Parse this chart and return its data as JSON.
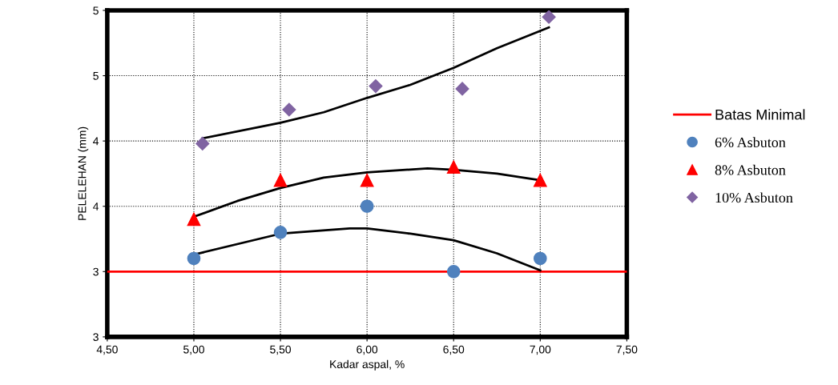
{
  "chart_data": {
    "type": "scatter",
    "xlabel": "Kadar aspal, %",
    "ylabel": "PELELEHAN (mm)",
    "xlim": [
      4.5,
      7.5
    ],
    "xticks": [
      {
        "value": 4.5,
        "label": "4,50"
      },
      {
        "value": 5.0,
        "label": "5,00"
      },
      {
        "value": 5.5,
        "label": "5,50"
      },
      {
        "value": 6.0,
        "label": "6,00"
      },
      {
        "value": 6.5,
        "label": "6,50"
      },
      {
        "value": 7.0,
        "label": "7,00"
      },
      {
        "value": 7.5,
        "label": "7,50"
      }
    ],
    "ylim": [
      2.5,
      5.0
    ],
    "yticks": [
      {
        "value": 2.5,
        "label": "3"
      },
      {
        "value": 3.0,
        "label": "3"
      },
      {
        "value": 3.5,
        "label": "4"
      },
      {
        "value": 4.0,
        "label": "4"
      },
      {
        "value": 4.5,
        "label": "5"
      },
      {
        "value": 5.0,
        "label": "5"
      }
    ],
    "grid": true,
    "legend": "right",
    "ref_lines": [
      {
        "axis": "y",
        "value": 3.0,
        "label": "Batas Minimal",
        "color": "#ff0000"
      }
    ],
    "series": [
      {
        "name": "6% Asbuton",
        "marker": "circle",
        "color": "#4f81bd",
        "x": [
          5.0,
          5.5,
          6.0,
          6.5,
          7.0
        ],
        "values": [
          3.1,
          3.3,
          3.5,
          3.0,
          3.1
        ]
      },
      {
        "name": "8% Asbuton",
        "marker": "triangle",
        "color": "#ff0000",
        "x": [
          5.0,
          5.5,
          6.0,
          6.5,
          7.0
        ],
        "values": [
          3.4,
          3.7,
          3.7,
          3.8,
          3.7
        ]
      },
      {
        "name": "10% Asbuton",
        "marker": "diamond",
        "color": "#8064a2",
        "x": [
          5.05,
          5.55,
          6.05,
          6.55,
          7.05
        ],
        "values": [
          3.98,
          4.24,
          4.42,
          4.4,
          4.95
        ]
      },
      {
        "type": "line",
        "color": "#000000",
        "x": [
          5.0,
          5.5,
          5.9,
          6.0,
          6.25,
          6.5,
          6.75,
          7.0
        ],
        "values": [
          3.13,
          3.29,
          3.33,
          3.33,
          3.29,
          3.24,
          3.14,
          3.01
        ]
      },
      {
        "type": "line",
        "color": "#000000",
        "x": [
          5.0,
          5.25,
          5.5,
          5.75,
          6.0,
          6.35,
          6.5,
          6.75,
          7.0
        ],
        "values": [
          3.42,
          3.54,
          3.64,
          3.72,
          3.76,
          3.79,
          3.78,
          3.75,
          3.7
        ]
      },
      {
        "type": "line",
        "color": "#000000",
        "x": [
          5.05,
          5.5,
          5.75,
          6.0,
          6.25,
          6.5,
          6.75,
          7.05
        ],
        "values": [
          4.02,
          4.14,
          4.22,
          4.33,
          4.43,
          4.56,
          4.71,
          4.87
        ]
      }
    ]
  }
}
